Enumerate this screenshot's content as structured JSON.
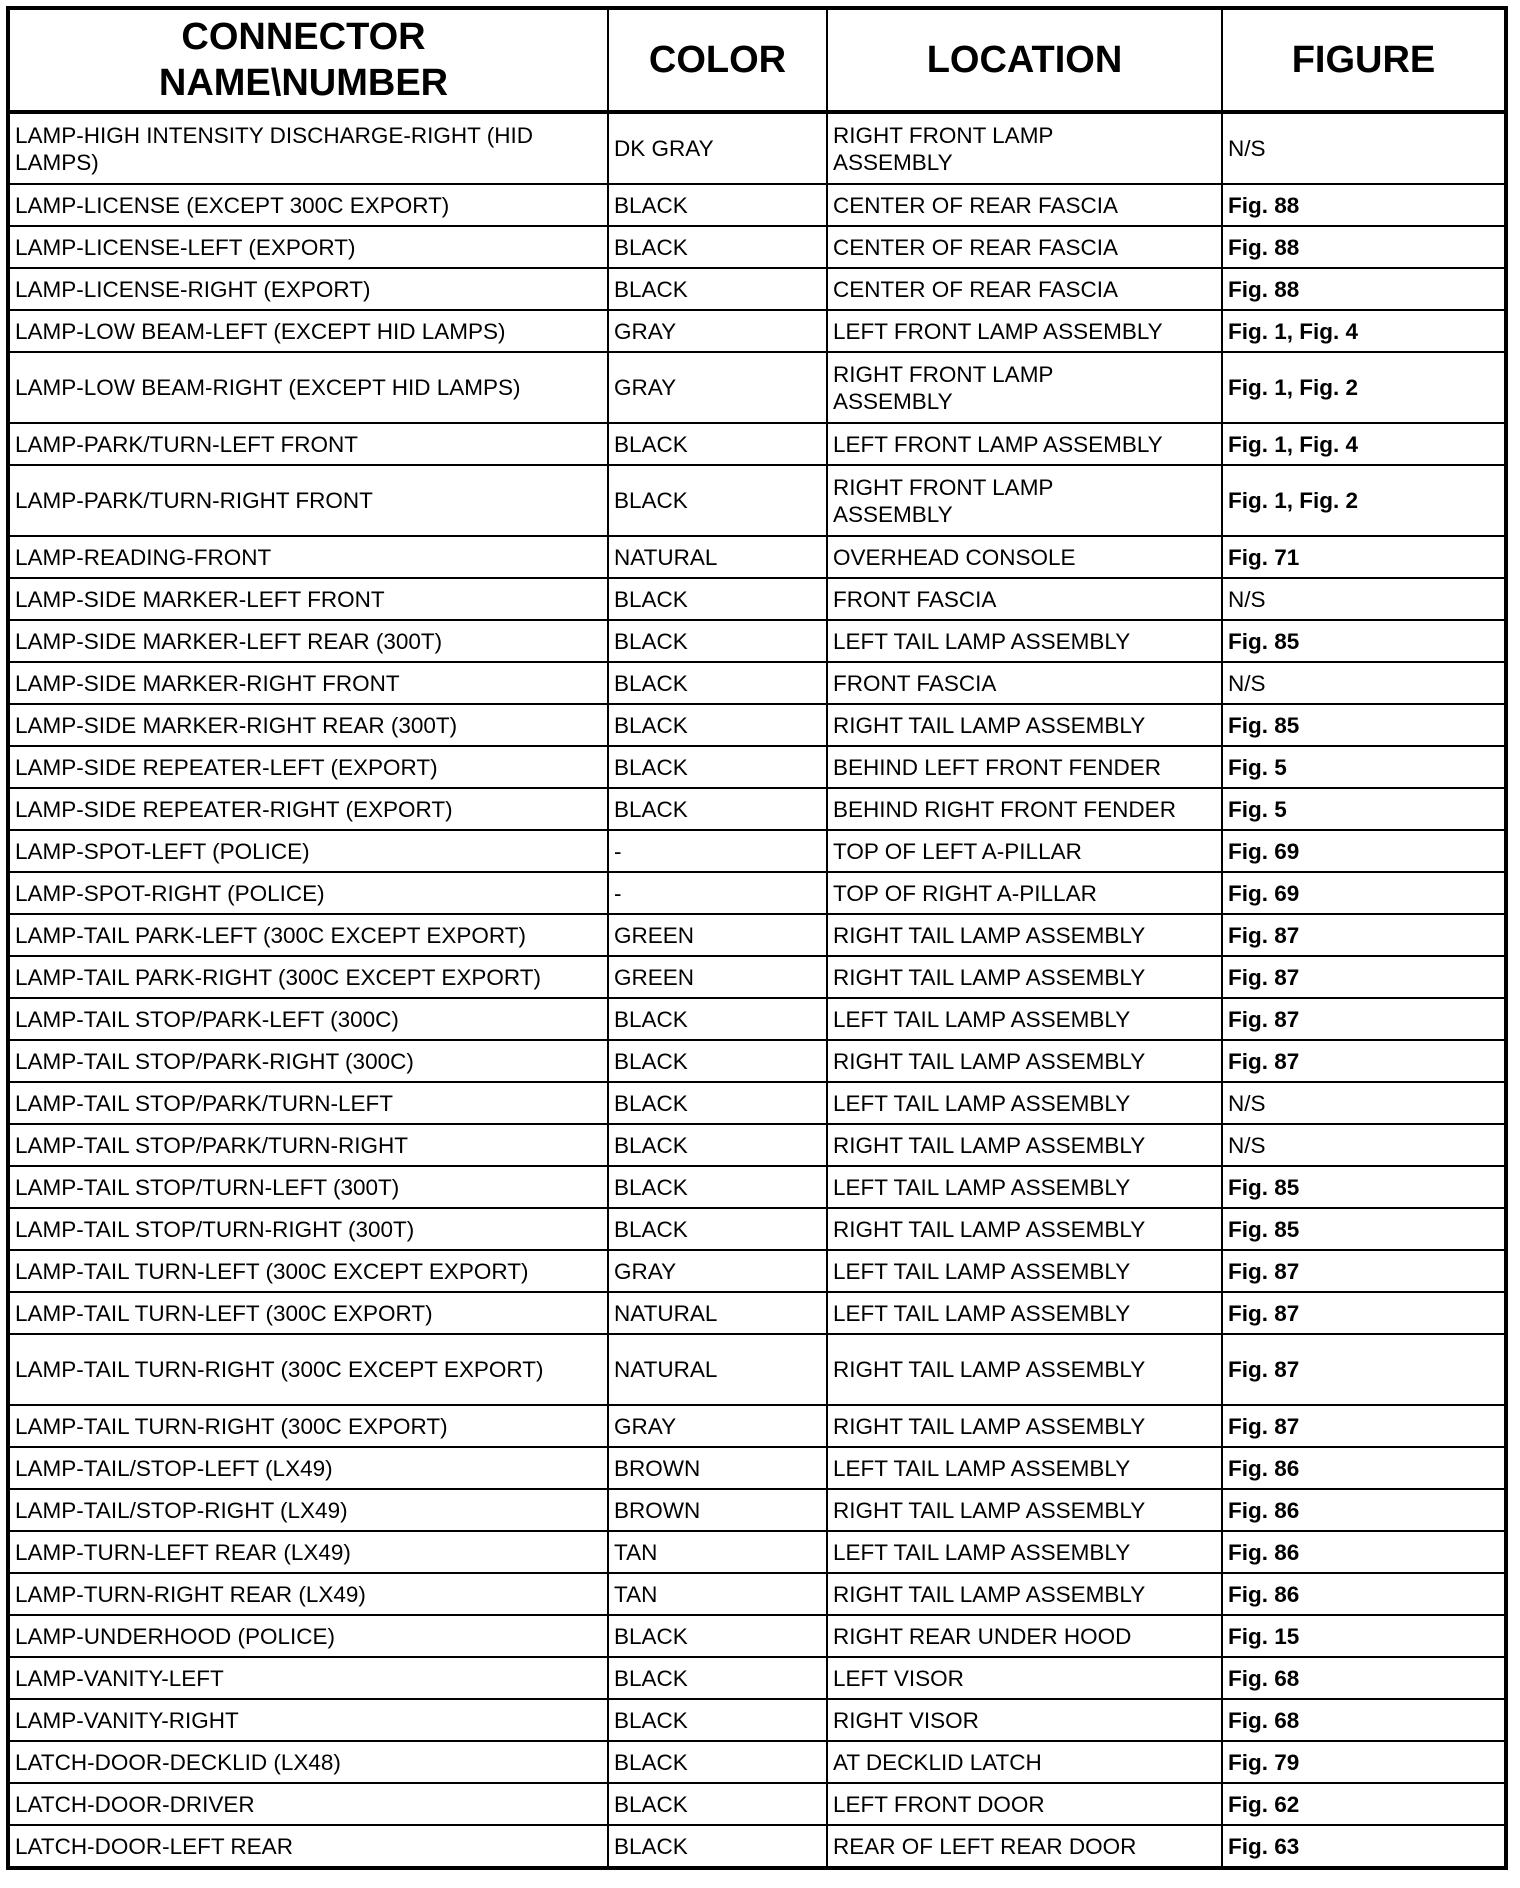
{
  "headers": [
    "CONNECTOR NAME\\NUMBER",
    "COLOR",
    "LOCATION",
    "FIGURE"
  ],
  "rows": [
    [
      "LAMP-HIGH INTENSITY DISCHARGE-RIGHT (HID LAMPS)",
      "DK GRAY",
      "RIGHT FRONT LAMP ASSEMBLY",
      "N/S"
    ],
    [
      "LAMP-LICENSE (EXCEPT 300C EXPORT)",
      "BLACK",
      "CENTER OF REAR FASCIA",
      "Fig. 88"
    ],
    [
      "LAMP-LICENSE-LEFT (EXPORT)",
      "BLACK",
      "CENTER OF REAR FASCIA",
      "Fig. 88"
    ],
    [
      "LAMP-LICENSE-RIGHT (EXPORT)",
      "BLACK",
      "CENTER OF REAR FASCIA",
      "Fig. 88"
    ],
    [
      "LAMP-LOW BEAM-LEFT (EXCEPT HID LAMPS)",
      "GRAY",
      "LEFT FRONT LAMP ASSEMBLY",
      "Fig. 1, Fig. 4"
    ],
    [
      "LAMP-LOW BEAM-RIGHT (EXCEPT HID LAMPS)",
      "GRAY",
      "RIGHT FRONT LAMP ASSEMBLY",
      "Fig. 1, Fig. 2"
    ],
    [
      "LAMP-PARK/TURN-LEFT FRONT",
      "BLACK",
      "LEFT FRONT LAMP ASSEMBLY",
      "Fig. 1, Fig. 4"
    ],
    [
      "LAMP-PARK/TURN-RIGHT FRONT",
      "BLACK",
      "RIGHT FRONT LAMP ASSEMBLY",
      "Fig. 1, Fig. 2"
    ],
    [
      "LAMP-READING-FRONT",
      "NATURAL",
      "OVERHEAD CONSOLE",
      "Fig. 71"
    ],
    [
      "LAMP-SIDE MARKER-LEFT FRONT",
      "BLACK",
      "FRONT FASCIA",
      "N/S"
    ],
    [
      "LAMP-SIDE MARKER-LEFT REAR (300T)",
      "BLACK",
      "LEFT TAIL LAMP ASSEMBLY",
      "Fig. 85"
    ],
    [
      "LAMP-SIDE MARKER-RIGHT FRONT",
      "BLACK",
      "FRONT FASCIA",
      "N/S"
    ],
    [
      "LAMP-SIDE MARKER-RIGHT REAR (300T)",
      "BLACK",
      "RIGHT TAIL LAMP ASSEMBLY",
      "Fig. 85"
    ],
    [
      "LAMP-SIDE REPEATER-LEFT (EXPORT)",
      "BLACK",
      "BEHIND LEFT FRONT FENDER",
      "Fig. 5"
    ],
    [
      "LAMP-SIDE REPEATER-RIGHT (EXPORT)",
      "BLACK",
      "BEHIND RIGHT FRONT FENDER",
      "Fig. 5"
    ],
    [
      "LAMP-SPOT-LEFT (POLICE)",
      "-",
      "TOP OF LEFT A-PILLAR",
      "Fig. 69"
    ],
    [
      "LAMP-SPOT-RIGHT (POLICE)",
      "-",
      "TOP OF RIGHT A-PILLAR",
      "Fig. 69"
    ],
    [
      "LAMP-TAIL PARK-LEFT (300C EXCEPT EXPORT)",
      "GREEN",
      "RIGHT TAIL LAMP ASSEMBLY",
      "Fig. 87"
    ],
    [
      "LAMP-TAIL PARK-RIGHT (300C EXCEPT EXPORT)",
      "GREEN",
      "RIGHT TAIL LAMP ASSEMBLY",
      "Fig. 87"
    ],
    [
      "LAMP-TAIL STOP/PARK-LEFT (300C)",
      "BLACK",
      "LEFT TAIL LAMP ASSEMBLY",
      "Fig. 87"
    ],
    [
      "LAMP-TAIL STOP/PARK-RIGHT (300C)",
      "BLACK",
      "RIGHT TAIL LAMP ASSEMBLY",
      "Fig. 87"
    ],
    [
      "LAMP-TAIL STOP/PARK/TURN-LEFT",
      "BLACK",
      "LEFT TAIL LAMP ASSEMBLY",
      "N/S"
    ],
    [
      "LAMP-TAIL STOP/PARK/TURN-RIGHT",
      "BLACK",
      "RIGHT TAIL LAMP ASSEMBLY",
      "N/S"
    ],
    [
      "LAMP-TAIL STOP/TURN-LEFT (300T)",
      "BLACK",
      "LEFT TAIL LAMP ASSEMBLY",
      "Fig. 85"
    ],
    [
      "LAMP-TAIL STOP/TURN-RIGHT (300T)",
      "BLACK",
      "RIGHT TAIL LAMP ASSEMBLY",
      "Fig. 85"
    ],
    [
      "LAMP-TAIL TURN-LEFT (300C EXCEPT EXPORT)",
      "GRAY",
      "LEFT TAIL LAMP ASSEMBLY",
      "Fig. 87"
    ],
    [
      "LAMP-TAIL TURN-LEFT (300C EXPORT)",
      "NATURAL",
      "LEFT TAIL LAMP ASSEMBLY",
      "Fig. 87"
    ],
    [
      "LAMP-TAIL TURN-RIGHT (300C EXCEPT EXPORT)",
      "NATURAL",
      "RIGHT TAIL LAMP ASSEMBLY",
      "Fig. 87"
    ],
    [
      "LAMP-TAIL TURN-RIGHT (300C EXPORT)",
      "GRAY",
      "RIGHT TAIL LAMP ASSEMBLY",
      "Fig. 87"
    ],
    [
      "LAMP-TAIL/STOP-LEFT (LX49)",
      "BROWN",
      "LEFT TAIL LAMP ASSEMBLY",
      "Fig. 86"
    ],
    [
      "LAMP-TAIL/STOP-RIGHT (LX49)",
      "BROWN",
      "RIGHT TAIL LAMP ASSEMBLY",
      "Fig. 86"
    ],
    [
      "LAMP-TURN-LEFT REAR (LX49)",
      "TAN",
      "LEFT TAIL LAMP ASSEMBLY",
      "Fig. 86"
    ],
    [
      "LAMP-TURN-RIGHT REAR (LX49)",
      "TAN",
      "RIGHT TAIL LAMP ASSEMBLY",
      "Fig. 86"
    ],
    [
      "LAMP-UNDERHOOD (POLICE)",
      "BLACK",
      "RIGHT REAR UNDER HOOD",
      "Fig. 15"
    ],
    [
      "LAMP-VANITY-LEFT",
      "BLACK",
      "LEFT VISOR",
      "Fig. 68"
    ],
    [
      "LAMP-VANITY-RIGHT",
      "BLACK",
      "RIGHT VISOR",
      "Fig. 68"
    ],
    [
      "LATCH-DOOR-DECKLID (LX48)",
      "BLACK",
      "AT DECKLID LATCH",
      "Fig. 79"
    ],
    [
      "LATCH-DOOR-DRIVER",
      "BLACK",
      "LEFT FRONT DOOR",
      "Fig. 62"
    ],
    [
      "LATCH-DOOR-LEFT REAR",
      "BLACK",
      "REAR OF LEFT REAR DOOR",
      "Fig. 63"
    ]
  ]
}
